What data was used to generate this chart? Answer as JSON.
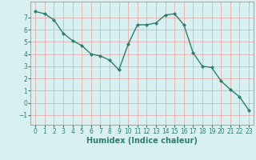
{
  "x": [
    0,
    1,
    2,
    3,
    4,
    5,
    6,
    7,
    8,
    9,
    10,
    11,
    12,
    13,
    14,
    15,
    16,
    17,
    18,
    19,
    20,
    21,
    22,
    23
  ],
  "y": [
    7.5,
    7.3,
    6.8,
    5.7,
    5.1,
    4.7,
    4.0,
    3.85,
    3.5,
    2.7,
    4.8,
    6.4,
    6.4,
    6.55,
    7.2,
    7.3,
    6.4,
    4.1,
    3.0,
    2.9,
    1.8,
    1.1,
    0.5,
    -0.6
  ],
  "line_color": "#2e7d6e",
  "marker": "D",
  "marker_size": 2.0,
  "line_width": 1.0,
  "xlabel": "Humidex (Indice chaleur)",
  "xlabel_fontsize": 7,
  "xlim": [
    -0.5,
    23.5
  ],
  "ylim": [
    -1.8,
    8.3
  ],
  "yticks": [
    -1,
    0,
    1,
    2,
    3,
    4,
    5,
    6,
    7
  ],
  "xticks": [
    0,
    1,
    2,
    3,
    4,
    5,
    6,
    7,
    8,
    9,
    10,
    11,
    12,
    13,
    14,
    15,
    16,
    17,
    18,
    19,
    20,
    21,
    22,
    23
  ],
  "bg_color": "#d9f0f0",
  "grid_color": "#e8a0a0",
  "tick_fontsize": 5.5,
  "tick_color": "#2e7d6e"
}
